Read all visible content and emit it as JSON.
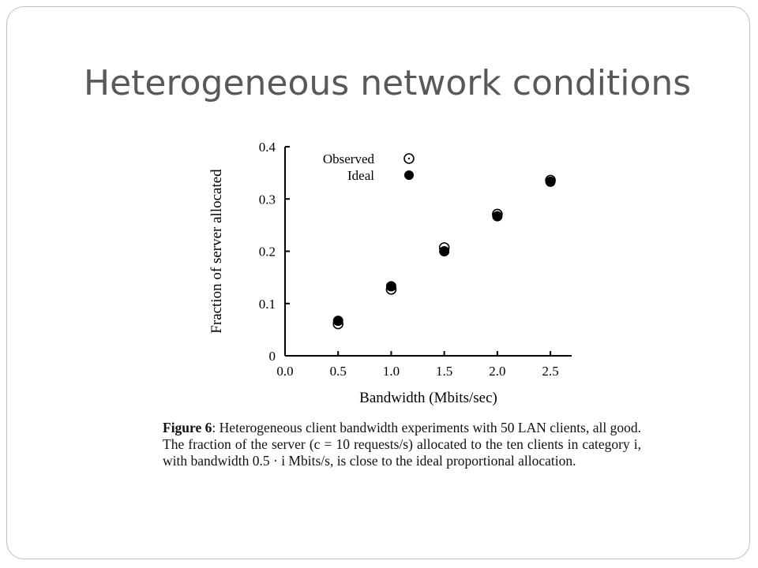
{
  "slide": {
    "title": "Heterogeneous network conditions"
  },
  "figure": {
    "caption_label": "Figure 6",
    "caption_text": ": Heterogeneous client bandwidth experiments with 50 LAN clients, all good. The fraction of the server (c = 10 requests/s) allocated to the ten clients in category i, with bandwidth 0.5 · i Mbits/s, is close to the ideal proportional allocation."
  },
  "chart_data": {
    "type": "scatter",
    "xlabel": "Bandwidth (Mbits/sec)",
    "ylabel": "Fraction of server allocated",
    "xlim": [
      0,
      2.7
    ],
    "ylim": [
      0,
      0.4
    ],
    "x_ticks": [
      0.0,
      0.5,
      1.0,
      1.5,
      2.0,
      2.5
    ],
    "x_tick_labels": [
      "0.0",
      "0.5",
      "1.0",
      "1.5",
      "2.0",
      "2.5"
    ],
    "y_ticks": [
      0,
      0.1,
      0.2,
      0.3,
      0.4
    ],
    "y_tick_labels": [
      "0",
      "0.1",
      "0.2",
      "0.3",
      "0.4"
    ],
    "legend_position": "top-left",
    "series": [
      {
        "name": "Observed",
        "marker": "open-circle",
        "x": [
          0.5,
          1.0,
          1.5,
          2.0,
          2.5
        ],
        "y": [
          0.061,
          0.127,
          0.207,
          0.271,
          0.336
        ]
      },
      {
        "name": "Ideal",
        "marker": "filled-circle",
        "x": [
          0.5,
          1.0,
          1.5,
          2.0,
          2.5
        ],
        "y": [
          0.067,
          0.133,
          0.2,
          0.267,
          0.333
        ]
      }
    ],
    "colors": {
      "axis": "#000000",
      "marker": "#000000"
    }
  }
}
